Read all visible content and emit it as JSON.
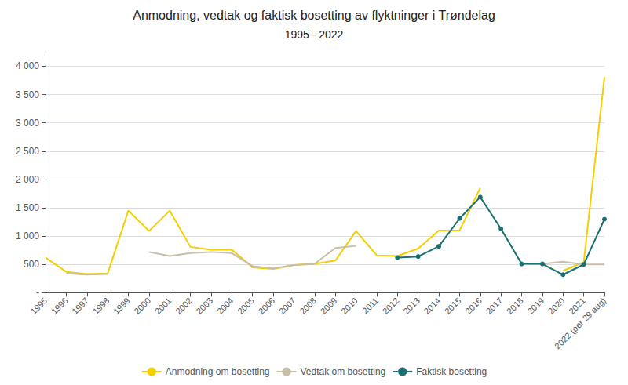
{
  "chart_data": {
    "type": "line",
    "title": "Anmodning, vedtak og faktisk bosetting av flyktninger i Trøndelag",
    "subtitle": "1995 - 2022",
    "categories": [
      "1995",
      "1996",
      "1997",
      "1998",
      "1999",
      "2000",
      "2001",
      "2002",
      "2003",
      "2004",
      "2005",
      "2006",
      "2007",
      "2008",
      "2009",
      "2010",
      "2011",
      "2012",
      "2013",
      "2014",
      "2015",
      "2016",
      "2017",
      "2018",
      "2019",
      "2020",
      "2021",
      "2022 (per 29 aug)"
    ],
    "series": [
      {
        "name": "Anmodning om bosetting",
        "color": "#f2d000",
        "values": [
          620,
          370,
          330,
          340,
          1450,
          1090,
          1450,
          810,
          760,
          760,
          450,
          420,
          490,
          510,
          570,
          1090,
          660,
          650,
          780,
          1100,
          1100,
          1850,
          null,
          null,
          null,
          390,
          540,
          3810
        ]
      },
      {
        "name": "Vedtak om bosetting",
        "color": "#c8bfa8",
        "values": [
          null,
          340,
          320,
          330,
          null,
          720,
          650,
          700,
          720,
          700,
          470,
          430,
          490,
          510,
          790,
          830,
          null,
          null,
          null,
          null,
          null,
          null,
          null,
          null,
          510,
          550,
          500,
          500
        ]
      },
      {
        "name": "Faktisk bosetting",
        "color": "#1a7070",
        "marker": "circle",
        "values": [
          null,
          null,
          null,
          null,
          null,
          null,
          null,
          null,
          null,
          null,
          null,
          null,
          null,
          null,
          null,
          null,
          null,
          620,
          640,
          820,
          1310,
          1690,
          1130,
          510,
          510,
          320,
          500,
          1300
        ]
      }
    ],
    "ylim": [
      0,
      4200
    ],
    "yticks": [
      {
        "value": 0,
        "label": "-"
      },
      500,
      {
        "value": 1000,
        "label": "1 000"
      },
      {
        "value": 1500,
        "label": "1 500"
      },
      {
        "value": 2000,
        "label": "2 000"
      },
      {
        "value": 2500,
        "label": "2 500"
      },
      {
        "value": 3000,
        "label": "3 000"
      },
      {
        "value": 3500,
        "label": "3 500"
      },
      {
        "value": 4000,
        "label": "4 000"
      }
    ],
    "grid": true,
    "legend": "bottom"
  }
}
